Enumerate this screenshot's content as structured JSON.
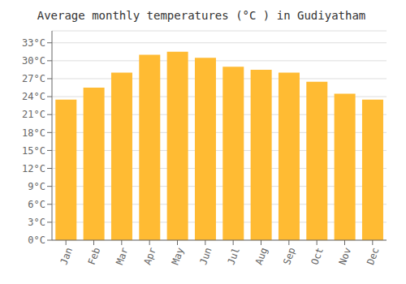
{
  "chart_data": {
    "type": "bar",
    "title": "Average monthly temperatures (°C ) in Gudiyatham",
    "categories": [
      "Jan",
      "Feb",
      "Mar",
      "Apr",
      "May",
      "Jun",
      "Jul",
      "Aug",
      "Sep",
      "Oct",
      "Nov",
      "Dec"
    ],
    "values": [
      23.5,
      25.5,
      28.0,
      31.0,
      31.5,
      30.5,
      29.0,
      28.5,
      28.0,
      26.5,
      24.5,
      23.5
    ],
    "color": "#FFBB33",
    "ylim": [
      0,
      35
    ],
    "yticks": [
      {
        "value": 0,
        "label": "0°C"
      },
      {
        "value": 3,
        "label": "3°C"
      },
      {
        "value": 6,
        "label": "6°C"
      },
      {
        "value": 9,
        "label": "9°C"
      },
      {
        "value": 12,
        "label": "12°C"
      },
      {
        "value": 15,
        "label": "15°C"
      },
      {
        "value": 18,
        "label": "18°C"
      },
      {
        "value": 21,
        "label": "21°C"
      },
      {
        "value": 24,
        "label": "24°C"
      },
      {
        "value": 27,
        "label": "27°C"
      },
      {
        "value": 30,
        "label": "30°C"
      },
      {
        "value": 33,
        "label": "33°C"
      }
    ],
    "grid": true
  }
}
